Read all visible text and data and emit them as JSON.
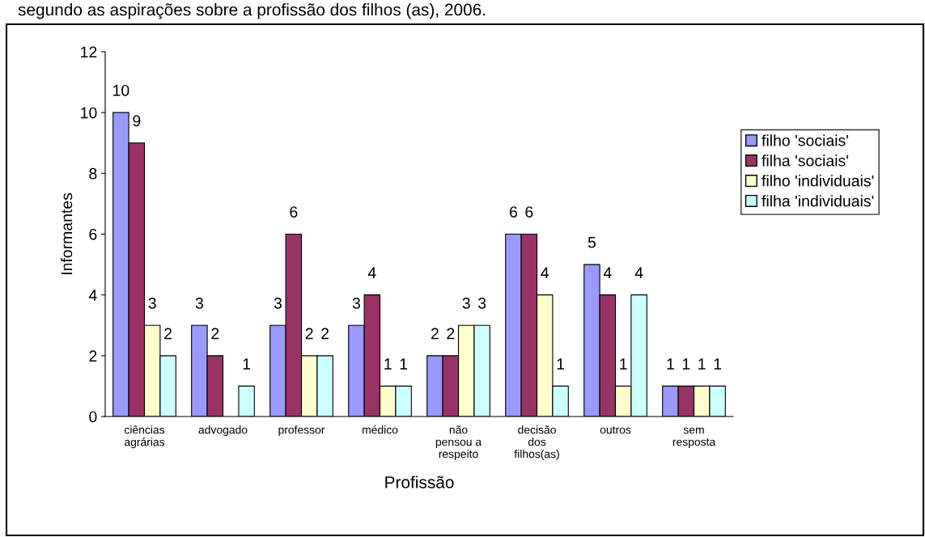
{
  "chart_data": {
    "type": "bar",
    "title": "segundo as aspirações sobre a profissão dos filhos (as), 2006.",
    "xlabel": "Profissão",
    "ylabel": "Informantes",
    "categories": [
      "ciências\nagrárias",
      "advogado",
      "professor",
      "médico",
      "não\npensou a\nrespeito",
      "decisão\ndos\nfilhos(as)",
      "outros",
      "sem\nresposta"
    ],
    "series": [
      {
        "name": "filho 'sociais'",
        "color": "#9999ff",
        "values": [
          10,
          3,
          3,
          3,
          2,
          6,
          5,
          1
        ]
      },
      {
        "name": "filha 'sociais'",
        "color": "#993366",
        "values": [
          9,
          2,
          6,
          4,
          2,
          6,
          4,
          1
        ]
      },
      {
        "name": "filho 'individuais'",
        "color": "#ffffcc",
        "values": [
          3,
          null,
          2,
          1,
          3,
          4,
          1,
          1
        ]
      },
      {
        "name": "filha 'individuais'",
        "color": "#ccffff",
        "values": [
          2,
          1,
          2,
          1,
          3,
          1,
          4,
          1
        ]
      }
    ],
    "ylim": [
      0,
      12
    ],
    "yticks": [
      0,
      2,
      4,
      6,
      8,
      10,
      12
    ],
    "data_labels": true,
    "grid": false,
    "legend": "right"
  }
}
